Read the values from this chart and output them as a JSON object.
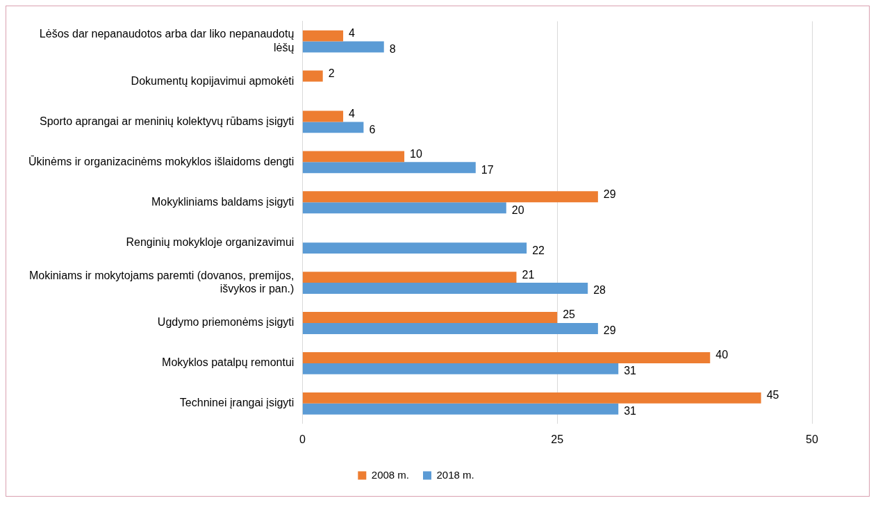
{
  "chart_data": {
    "type": "bar",
    "orientation": "horizontal",
    "categories": [
      "Lėšos dar nepanaudotos arba dar liko nepanaudotų lėšų",
      "Dokumentų kopijavimui apmokėti",
      "Sporto aprangai ar meninių kolektyvų rūbams įsigyti",
      "Ūkinėms ir organizacinėms mokyklos išlaidoms dengti",
      "Mokykliniams baldams įsigyti",
      "Renginių mokykloje organizavimui",
      "Mokiniams ir mokytojams paremti (dovanos, premijos, išvykos ir pan.)",
      "Ugdymo priemonėms įsigyti",
      "Mokyklos patalpų remontui",
      "Techninei įrangai įsigyti"
    ],
    "series": [
      {
        "name": "2008 m.",
        "color": "#ed7d31",
        "values": [
          4,
          2,
          4,
          10,
          29,
          null,
          21,
          25,
          40,
          45
        ]
      },
      {
        "name": "2018 m.",
        "color": "#5b9bd5",
        "values": [
          8,
          null,
          6,
          17,
          20,
          22,
          28,
          29,
          31,
          31
        ]
      }
    ],
    "xlim": [
      0,
      50
    ],
    "xticks": [
      0,
      25,
      50
    ],
    "grid": "x",
    "legend": "bottom",
    "data_labels": true
  }
}
